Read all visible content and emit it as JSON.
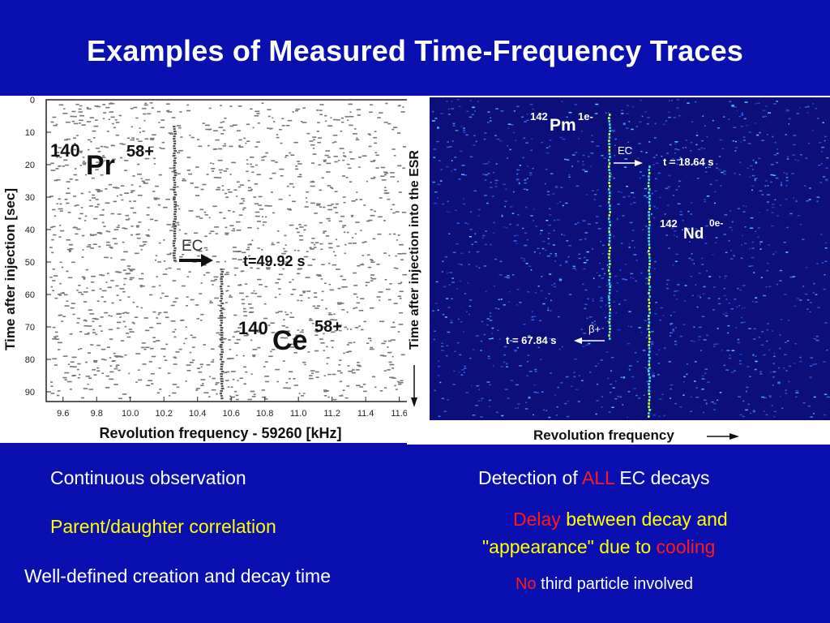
{
  "slide": {
    "title": "Examples of Measured Time-Frequency Traces",
    "colors": {
      "background": "#0a10b0",
      "title": "#ffffff",
      "highlight_yellow": "#ffff00",
      "highlight_red": "#ff1a1a"
    }
  },
  "left_plot": {
    "ylabel": "Time after injection [sec]",
    "xlabel": "Revolution frequency - 59260 [kHz]",
    "y_ticks": [
      "0",
      "10",
      "20",
      "30",
      "40",
      "50",
      "60",
      "70",
      "80",
      "90"
    ],
    "x_ticks": [
      "9.6",
      "9.8",
      "10.0",
      "10.2",
      "10.4",
      "10.6",
      "10.8",
      "11.0",
      "11.2",
      "11.4",
      "11.6"
    ],
    "parent": {
      "mass": "140",
      "element": "Pr",
      "charge": "58+"
    },
    "daughter": {
      "mass": "140",
      "element": "Ce",
      "charge": "58+"
    },
    "arrow_label": "EC",
    "time_label": "t=49.92 s",
    "chart_data": {
      "type": "scatter",
      "xlabel": "Revolution frequency - 59260 [kHz]",
      "ylabel": "Time after injection [sec]",
      "xlim": [
        9.5,
        11.65
      ],
      "ylim": [
        0,
        93
      ],
      "series": [
        {
          "x": [
            10.26,
            10.26
          ],
          "y": [
            8,
            49.92
          ]
        },
        {
          "x": [
            10.54,
            10.54
          ],
          "y": [
            52,
            92
          ]
        }
      ]
    }
  },
  "right_plot": {
    "ylabel": "Time after injection into the ESR",
    "xlabel": "Revolution frequency",
    "parent": {
      "mass": "142",
      "element": "Pm",
      "state": "1e-"
    },
    "daughter": {
      "mass": "142",
      "element": "Nd",
      "state": "0e-"
    },
    "ec_label": "EC",
    "ec_time": "t = 18.64 s",
    "beta_label": "β+",
    "beta_time": "t = 67.84 s"
  },
  "bullets": {
    "continuous": "Continuous observation",
    "parent_daughter": "Parent/daughter correlation",
    "well_defined": "Well-defined creation and decay time",
    "detection_a": "Detection of ",
    "detection_b": "ALL",
    "detection_c": " EC decays",
    "delay_a": "Delay",
    "delay_b": " between decay and",
    "delay_c": "\"appearance\" due to ",
    "delay_d": "cooling",
    "no_a": "No",
    "no_b": " third particle involved"
  }
}
